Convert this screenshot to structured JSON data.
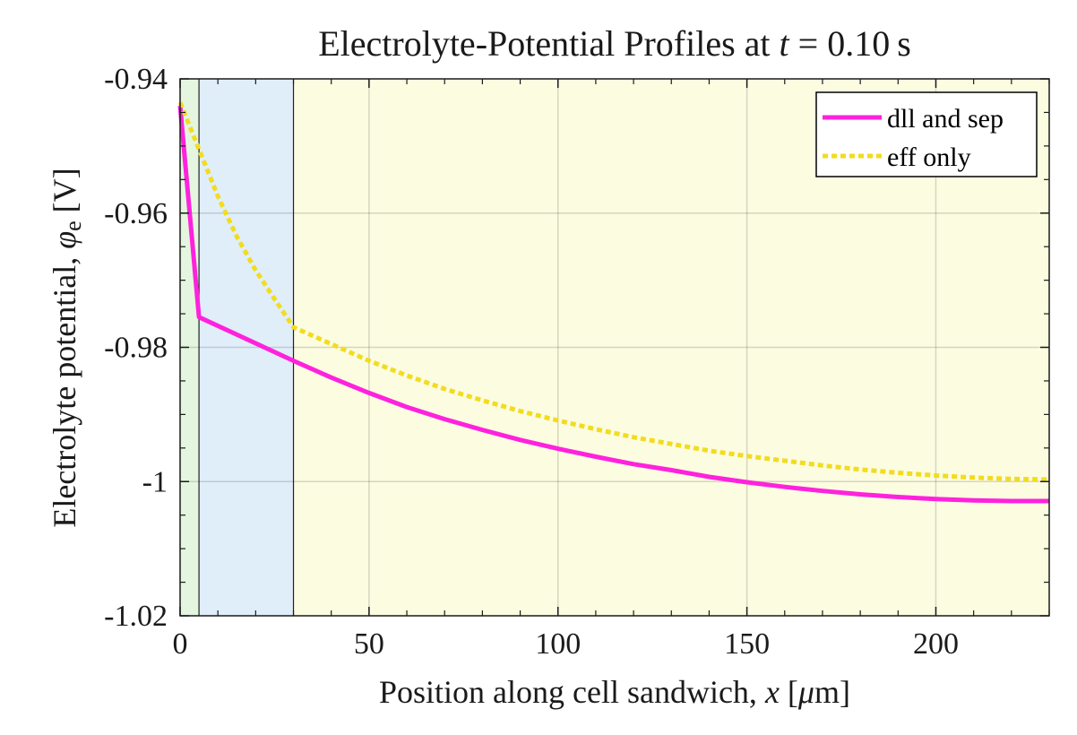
{
  "chart_data": {
    "type": "line",
    "title": {
      "prefix": "Electrolyte-Potential Profiles at ",
      "var": "t",
      "eq": " = 0.10",
      "unit": "s"
    },
    "xlabel": {
      "prefix": "Position along cell sandwich, ",
      "var": "x",
      "unit_open": " [",
      "unit_mu": "μ",
      "unit_rest": "m]"
    },
    "ylabel": {
      "prefix": "Electrolyte potential, ",
      "var": "φ",
      "sub": "e",
      "unit": " [V]"
    },
    "xlim": [
      0,
      230
    ],
    "ylim": [
      -1.02,
      -0.94
    ],
    "x_ticks": [
      0,
      50,
      100,
      150,
      200
    ],
    "x_tick_labels": [
      "0",
      "50",
      "100",
      "150",
      "200"
    ],
    "y_ticks": [
      -0.94,
      -0.96,
      -0.98,
      -1.0,
      -1.02
    ],
    "y_tick_labels": [
      "-0.94",
      "-0.96",
      "-0.98",
      "-1",
      "-1.02"
    ],
    "grid": true,
    "legend_position": "top-right",
    "regions": [
      {
        "x0": 0,
        "x1": 5,
        "color": "#e4f6df"
      },
      {
        "x0": 5,
        "x1": 30,
        "color": "#e0eef9"
      },
      {
        "x0": 30,
        "x1": 230,
        "color": "#fcfce1"
      }
    ],
    "series": [
      {
        "name": "dll and sep",
        "color": "#ff22dd",
        "dash": "solid",
        "x": [
          0,
          5,
          30,
          40,
          50,
          60,
          70,
          80,
          90,
          100,
          110,
          120,
          130,
          140,
          150,
          160,
          170,
          180,
          190,
          200,
          210,
          220,
          230
        ],
        "y": [
          -0.944,
          -0.9755,
          -0.982,
          -0.9845,
          -0.9868,
          -0.9889,
          -0.9907,
          -0.9923,
          -0.9938,
          -0.9951,
          -0.9963,
          -0.9974,
          -0.9983,
          -0.9993,
          -1.0001,
          -1.0008,
          -1.0014,
          -1.0019,
          -1.0023,
          -1.0026,
          -1.0028,
          -1.0029,
          -1.0029
        ]
      },
      {
        "name": "eff only",
        "color": "#f2dc1e",
        "dash": "dotted",
        "x": [
          0,
          5,
          10,
          15,
          20,
          25,
          30,
          40,
          50,
          60,
          70,
          80,
          90,
          100,
          110,
          120,
          130,
          140,
          150,
          160,
          170,
          180,
          190,
          200,
          210,
          220,
          230
        ],
        "y": [
          -0.9435,
          -0.9505,
          -0.9575,
          -0.9635,
          -0.9685,
          -0.9728,
          -0.977,
          -0.9795,
          -0.982,
          -0.9842,
          -0.9862,
          -0.9879,
          -0.9895,
          -0.9909,
          -0.9922,
          -0.9934,
          -0.9944,
          -0.9954,
          -0.9962,
          -0.9969,
          -0.9976,
          -0.9982,
          -0.9987,
          -0.9991,
          -0.9994,
          -0.9996,
          -0.9997
        ]
      }
    ]
  }
}
